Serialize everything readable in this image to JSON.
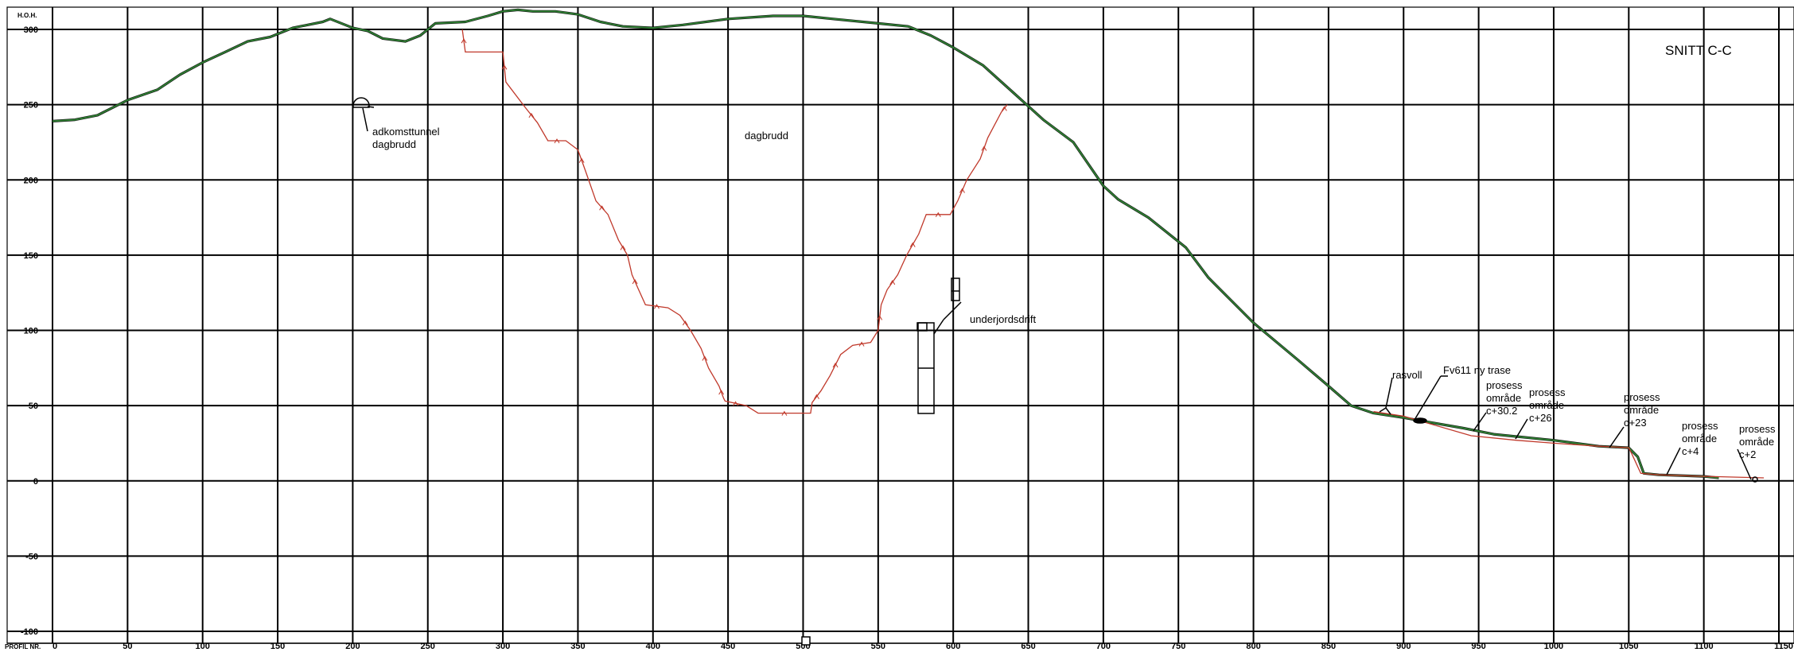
{
  "chart_data": {
    "type": "line",
    "title": "SNITT C-C",
    "xlabel": "PROFIL NR.",
    "ylabel": "H.O.H.",
    "xlim": [
      0,
      1150
    ],
    "ylim": [
      -100,
      300
    ],
    "grid": true,
    "x_ticks": [
      0,
      50,
      100,
      150,
      200,
      250,
      300,
      350,
      400,
      450,
      500,
      550,
      600,
      650,
      700,
      750,
      800,
      850,
      900,
      950,
      1000,
      1050,
      1100,
      1150
    ],
    "y_ticks": [
      300,
      250,
      200,
      150,
      100,
      50,
      0,
      -50,
      -100
    ],
    "series": [
      {
        "color": "#2e7d32",
        "points": [
          [
            0,
            239
          ],
          [
            15,
            240
          ],
          [
            30,
            243
          ],
          [
            40,
            248
          ],
          [
            50,
            253
          ],
          [
            70,
            260
          ],
          [
            85,
            270
          ],
          [
            100,
            278
          ],
          [
            115,
            285
          ],
          [
            130,
            292
          ],
          [
            145,
            295
          ],
          [
            160,
            301
          ],
          [
            170,
            303
          ],
          [
            180,
            305
          ],
          [
            185,
            307
          ],
          [
            195,
            303
          ],
          [
            200,
            301
          ],
          [
            210,
            299
          ],
          [
            220,
            294
          ],
          [
            235,
            292
          ],
          [
            245,
            296
          ],
          [
            255,
            304
          ],
          [
            275,
            305
          ],
          [
            290,
            309
          ],
          [
            300,
            312
          ],
          [
            310,
            313
          ],
          [
            320,
            312
          ],
          [
            335,
            312
          ],
          [
            350,
            310
          ],
          [
            365,
            305
          ],
          [
            380,
            302
          ],
          [
            400,
            301
          ],
          [
            420,
            303
          ],
          [
            450,
            307
          ],
          [
            480,
            309
          ],
          [
            500,
            309
          ],
          [
            520,
            307
          ],
          [
            550,
            304
          ],
          [
            570,
            302
          ],
          [
            585,
            296
          ],
          [
            600,
            288
          ],
          [
            620,
            276
          ],
          [
            640,
            258
          ],
          [
            660,
            240
          ],
          [
            680,
            225
          ],
          [
            700,
            196
          ],
          [
            710,
            187
          ],
          [
            730,
            175
          ],
          [
            755,
            155
          ],
          [
            770,
            135
          ],
          [
            800,
            105
          ],
          [
            830,
            80
          ],
          [
            850,
            63
          ],
          [
            865,
            50
          ],
          [
            880,
            45
          ],
          [
            900,
            42
          ],
          [
            940,
            35
          ],
          [
            960,
            31
          ],
          [
            1000,
            27
          ],
          [
            1030,
            23
          ],
          [
            1050,
            22
          ],
          [
            1056,
            16
          ],
          [
            1060,
            5
          ],
          [
            1070,
            4
          ],
          [
            1100,
            3
          ],
          [
            1110,
            2
          ]
        ]
      },
      {
        "color": "#c0392b",
        "points": [
          [
            273,
            300
          ],
          [
            275,
            285
          ],
          [
            300,
            285
          ],
          [
            302,
            265
          ],
          [
            315,
            248
          ],
          [
            323,
            238
          ],
          [
            330,
            226
          ],
          [
            342,
            226
          ],
          [
            350,
            220
          ],
          [
            355,
            206
          ],
          [
            362,
            186
          ],
          [
            370,
            177
          ],
          [
            377,
            160
          ],
          [
            383,
            150
          ],
          [
            386,
            137
          ],
          [
            390,
            128
          ],
          [
            395,
            117
          ],
          [
            410,
            115
          ],
          [
            418,
            110
          ],
          [
            425,
            100
          ],
          [
            432,
            88
          ],
          [
            437,
            75
          ],
          [
            444,
            63
          ],
          [
            447,
            55
          ],
          [
            448,
            53
          ],
          [
            462,
            50
          ],
          [
            470,
            45
          ],
          [
            505,
            45
          ],
          [
            506,
            52
          ],
          [
            512,
            60
          ],
          [
            518,
            70
          ],
          [
            525,
            84
          ],
          [
            533,
            90
          ],
          [
            545,
            92
          ],
          [
            550,
            100
          ],
          [
            552,
            117
          ],
          [
            556,
            127
          ],
          [
            563,
            137
          ],
          [
            569,
            150
          ],
          [
            577,
            164
          ],
          [
            582,
            177
          ],
          [
            598,
            177
          ],
          [
            603,
            186
          ],
          [
            609,
            200
          ],
          [
            618,
            214
          ],
          [
            623,
            228
          ],
          [
            632,
            245
          ],
          [
            636,
            250
          ]
        ]
      },
      {
        "color": "#c0392b",
        "points": [
          [
            880,
            46
          ],
          [
            900,
            43
          ],
          [
            945,
            30
          ],
          [
            975,
            27
          ],
          [
            1000,
            25
          ],
          [
            1030,
            23
          ],
          [
            1050,
            22
          ],
          [
            1052,
            18
          ],
          [
            1058,
            5
          ],
          [
            1070,
            4
          ],
          [
            1100,
            3
          ],
          [
            1140,
            2
          ]
        ]
      }
    ]
  },
  "annotations": {
    "adkomst": "adkomsttunnel\ndagbrudd",
    "dagbrudd": "dagbrudd",
    "underjord": "underjordsdrift",
    "rasvoll": "rasvoll",
    "fv611": "Fv611 ny trase",
    "p302": "prosess\nområde\nc+30.2",
    "p26": "prosess\nområde\nc+26",
    "p23": "prosess\nområde\nc+23",
    "p4": "prosess\nområde\nc+4",
    "p2": "prosess\nområde\nc+2"
  },
  "colors": {
    "terrain": "#2e7d32",
    "excavation": "#c0392b",
    "grid": "#000000"
  }
}
